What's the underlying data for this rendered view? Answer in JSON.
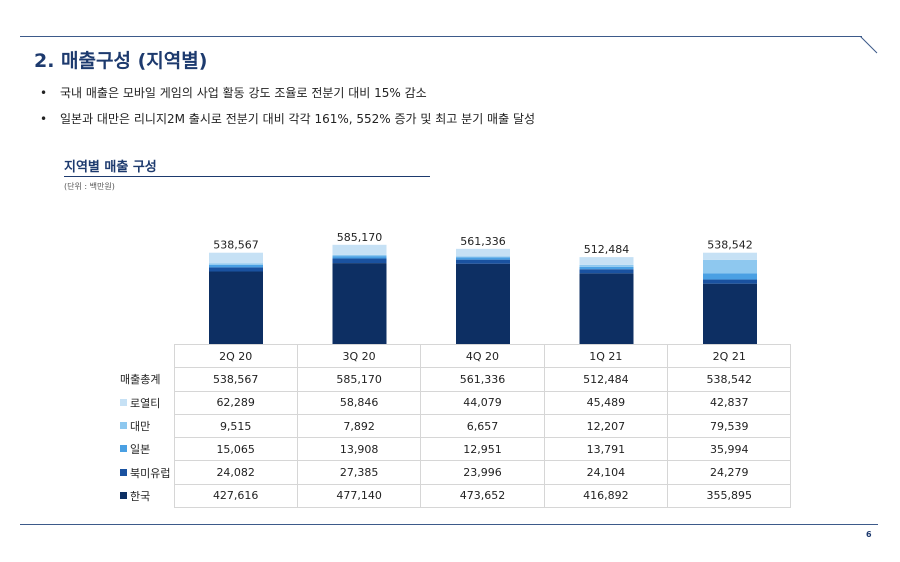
{
  "page": {
    "title": "2. 매출구성 (지역별)",
    "bullets": [
      "국내 매출은 모바일 게임의 사업 활동 강도 조율로 전분기 대비 15% 감소",
      "일본과 대만은 리니지2M 출시로 전분기 대비 각각 161%, 552% 증가 및 최고 분기 매출 달성"
    ],
    "page_number": "6"
  },
  "chart_data": {
    "type": "bar",
    "stacked": true,
    "title": "지역별 매출 구성",
    "unit_note": "(단위 : 백만원)",
    "categories": [
      "2Q 20",
      "3Q 20",
      "4Q 20",
      "1Q 21",
      "2Q 21"
    ],
    "totals_label": "매출총계",
    "totals": [
      "538,567",
      "585,170",
      "561,336",
      "512,484",
      "538,542"
    ],
    "total_values": [
      538567,
      585170,
      561336,
      512484,
      538542
    ],
    "series": [
      {
        "name": "한국",
        "color": "#0d2f63",
        "values": [
          427616,
          477140,
          473652,
          416892,
          355895
        ],
        "labels": [
          "427,616",
          "477,140",
          "473,652",
          "416,892",
          "355,895"
        ]
      },
      {
        "name": "북미유럽",
        "color": "#1a52a0",
        "values": [
          24082,
          27385,
          23996,
          24104,
          24279
        ],
        "labels": [
          "24,082",
          "27,385",
          "23,996",
          "24,104",
          "24,279"
        ]
      },
      {
        "name": "일본",
        "color": "#4aa0e3",
        "values": [
          15065,
          13908,
          12951,
          13791,
          35994
        ],
        "labels": [
          "15,065",
          "13,908",
          "12,951",
          "13,791",
          "35,994"
        ]
      },
      {
        "name": "대만",
        "color": "#8ec8ef",
        "values": [
          9515,
          7892,
          6657,
          12207,
          79539
        ],
        "labels": [
          "9,515",
          "7,892",
          "6,657",
          "12,207",
          "79,539"
        ]
      },
      {
        "name": "로열티",
        "color": "#c6e1f5",
        "values": [
          62289,
          58846,
          44079,
          45489,
          42837
        ],
        "labels": [
          "62,289",
          "58,846",
          "44,079",
          "45,489",
          "42,837"
        ]
      }
    ],
    "table_row_order": [
      "로열티",
      "대만",
      "일본",
      "북미유럽",
      "한국"
    ],
    "grid": false,
    "legend": "table"
  }
}
